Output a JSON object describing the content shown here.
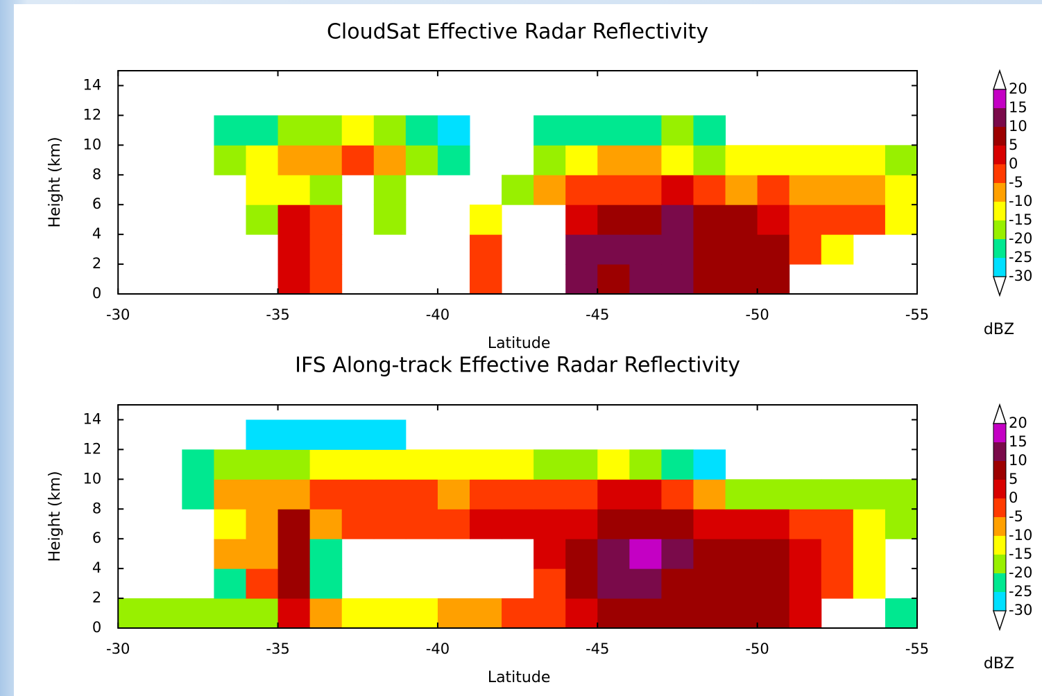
{
  "chart_data": [
    {
      "type": "heatmap",
      "title": "CloudSat Effective Radar Reflectivity",
      "xlabel": "Latitude",
      "ylabel": "Height (km)",
      "xlim": [
        -30,
        -55
      ],
      "ylim": [
        0,
        15
      ],
      "xticks": [
        -30,
        -35,
        -40,
        -45,
        -50,
        -55
      ],
      "yticks": [
        0,
        2,
        4,
        6,
        8,
        10,
        12,
        14
      ],
      "x_edges": [
        -30,
        -31,
        -32,
        -33,
        -34,
        -35,
        -36,
        -37,
        -38,
        -39,
        -40,
        -41,
        -42,
        -43,
        -44,
        -45,
        -46,
        -47,
        -48,
        -49,
        -50,
        -51,
        -52,
        -53,
        -54,
        -55
      ],
      "y_edges": [
        0,
        2,
        4,
        6,
        8,
        10,
        12,
        14
      ],
      "values": [
        [
          null,
          null,
          null,
          null,
          null,
          0,
          -5,
          null,
          null,
          null,
          null,
          -5,
          null,
          null,
          10,
          5,
          10,
          10,
          5,
          5,
          5,
          null,
          null,
          null,
          null
        ],
        [
          null,
          null,
          null,
          null,
          null,
          0,
          -5,
          null,
          null,
          null,
          null,
          -5,
          null,
          null,
          10,
          10,
          10,
          10,
          5,
          5,
          5,
          -5,
          -15,
          null,
          null
        ],
        [
          null,
          null,
          null,
          null,
          -20,
          0,
          -5,
          null,
          -20,
          null,
          null,
          -15,
          null,
          null,
          0,
          5,
          5,
          10,
          5,
          5,
          0,
          -5,
          -5,
          -5,
          -15
        ],
        [
          null,
          null,
          null,
          null,
          -15,
          -15,
          -20,
          null,
          -20,
          null,
          null,
          null,
          -20,
          -10,
          -5,
          -5,
          -5,
          0,
          -5,
          -10,
          -5,
          -10,
          -10,
          -10,
          -15
        ],
        [
          null,
          null,
          null,
          -20,
          -15,
          -10,
          -10,
          -5,
          -10,
          -20,
          -25,
          null,
          null,
          -20,
          -15,
          -10,
          -10,
          -15,
          -20,
          -15,
          -15,
          -15,
          -15,
          -15,
          -20
        ],
        [
          null,
          null,
          null,
          -25,
          -22,
          -20,
          -18,
          -15,
          -20,
          -25,
          -28,
          null,
          null,
          -25,
          -25,
          -22,
          -22,
          -20,
          -25,
          null,
          null,
          null,
          null,
          null,
          null
        ],
        [
          null,
          null,
          null,
          null,
          null,
          null,
          null,
          null,
          null,
          null,
          null,
          null,
          null,
          null,
          null,
          null,
          null,
          null,
          null,
          null,
          null,
          null,
          null,
          null,
          null
        ]
      ],
      "colorbar": {
        "label": "dBZ",
        "levels": [
          20,
          15,
          10,
          5,
          0,
          -5,
          -10,
          -15,
          -20,
          -25,
          -30
        ],
        "colors": [
          "#c400c4",
          "#7a0a4a",
          "#9c0000",
          "#d80000",
          "#ff3a00",
          "#ffa000",
          "#ffff00",
          "#98f000",
          "#00e890",
          "#00e0ff"
        ]
      }
    },
    {
      "type": "heatmap",
      "title": "IFS Along-track Effective Radar Reflectivity",
      "xlabel": "Latitude",
      "ylabel": "Height (km)",
      "xlim": [
        -30,
        -55
      ],
      "ylim": [
        0,
        15
      ],
      "xticks": [
        -30,
        -35,
        -40,
        -45,
        -50,
        -55
      ],
      "yticks": [
        0,
        2,
        4,
        6,
        8,
        10,
        12,
        14
      ],
      "x_edges": [
        -30,
        -31,
        -32,
        -33,
        -34,
        -35,
        -36,
        -37,
        -38,
        -39,
        -40,
        -41,
        -42,
        -43,
        -44,
        -45,
        -46,
        -47,
        -48,
        -49,
        -50,
        -51,
        -52,
        -53,
        -54,
        -55
      ],
      "y_edges": [
        0,
        2,
        4,
        6,
        8,
        10,
        12,
        14
      ],
      "values": [
        [
          -20,
          -20,
          -20,
          -20,
          -20,
          0,
          -10,
          -15,
          -15,
          -15,
          -10,
          -10,
          -5,
          -5,
          0,
          5,
          5,
          5,
          5,
          5,
          5,
          0,
          null,
          null,
          -25
        ],
        [
          null,
          null,
          null,
          -25,
          -5,
          5,
          -25,
          null,
          null,
          null,
          null,
          null,
          null,
          -5,
          5,
          10,
          10,
          5,
          5,
          5,
          5,
          0,
          -5,
          -15,
          null
        ],
        [
          null,
          null,
          null,
          -10,
          -10,
          5,
          -25,
          null,
          null,
          null,
          null,
          null,
          null,
          0,
          5,
          10,
          15,
          10,
          5,
          5,
          5,
          0,
          -5,
          -15,
          null
        ],
        [
          null,
          null,
          null,
          -15,
          -10,
          5,
          -10,
          -5,
          -5,
          -5,
          -5,
          0,
          0,
          0,
          0,
          5,
          5,
          5,
          0,
          0,
          0,
          -5,
          -5,
          -15,
          -20
        ],
        [
          null,
          null,
          -25,
          -10,
          -10,
          -10,
          -5,
          -5,
          -5,
          -5,
          -10,
          -5,
          -5,
          -5,
          -5,
          0,
          0,
          -5,
          -10,
          -20,
          -20,
          -20,
          -20,
          -20,
          -20
        ],
        [
          null,
          null,
          -25,
          -20,
          -20,
          -20,
          -15,
          -15,
          -15,
          -15,
          -15,
          -15,
          -15,
          -20,
          -20,
          -15,
          -20,
          -25,
          -28,
          null,
          null,
          null,
          null,
          null,
          null
        ],
        [
          null,
          null,
          null,
          null,
          -28,
          -28,
          -28,
          -28,
          -28,
          null,
          null,
          null,
          null,
          null,
          null,
          null,
          null,
          null,
          null,
          null,
          null,
          null,
          null,
          null,
          null
        ]
      ],
      "colorbar": {
        "label": "dBZ",
        "levels": [
          20,
          15,
          10,
          5,
          0,
          -5,
          -10,
          -15,
          -20,
          -25,
          -30
        ],
        "colors": [
          "#c400c4",
          "#7a0a4a",
          "#9c0000",
          "#d80000",
          "#ff3a00",
          "#ffa000",
          "#ffff00",
          "#98f000",
          "#00e890",
          "#00e0ff"
        ]
      }
    }
  ]
}
